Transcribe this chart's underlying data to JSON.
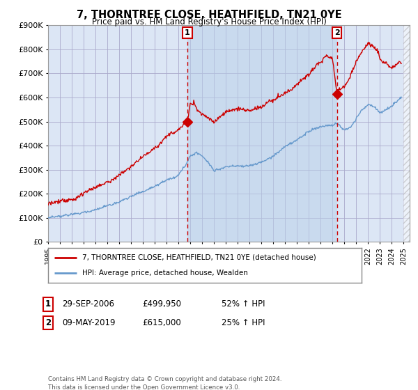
{
  "title": "7, THORNTREE CLOSE, HEATHFIELD, TN21 0YE",
  "subtitle": "Price paid vs. HM Land Registry's House Price Index (HPI)",
  "legend_line1": "7, THORNTREE CLOSE, HEATHFIELD, TN21 0YE (detached house)",
  "legend_line2": "HPI: Average price, detached house, Wealden",
  "sale1_date": "29-SEP-2006",
  "sale1_price": "£499,950",
  "sale1_hpi": "52% ↑ HPI",
  "sale1_year": 2006.75,
  "sale1_price_val": 499950,
  "sale2_date": "09-MAY-2019",
  "sale2_price": "£615,000",
  "sale2_hpi": "25% ↑ HPI",
  "sale2_year": 2019.36,
  "sale2_price_val": 615000,
  "red_color": "#cc0000",
  "blue_color": "#6699cc",
  "background_color": "#ffffff",
  "plot_bg_color": "#dce6f5",
  "shade_between_color": "#c5d8f0",
  "grid_color": "#aaaacc",
  "ylim": [
    0,
    900000
  ],
  "xlim_start": 1995.0,
  "xlim_end": 2025.5,
  "footnote": "Contains HM Land Registry data © Crown copyright and database right 2024.\nThis data is licensed under the Open Government Licence v3.0."
}
